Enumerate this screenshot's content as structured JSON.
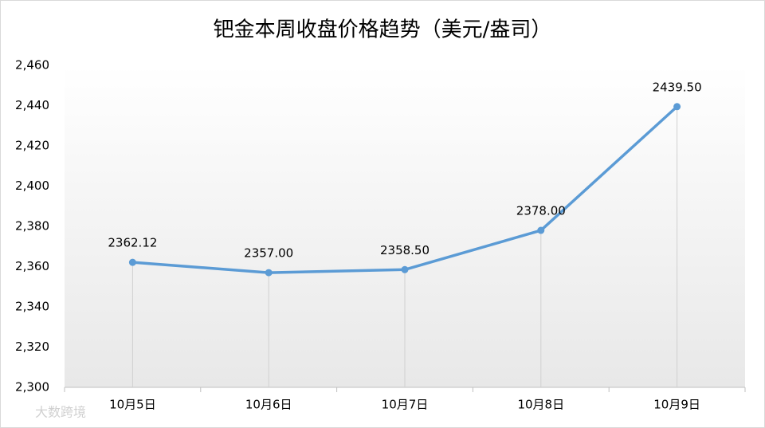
{
  "chart_data": {
    "type": "line",
    "title": "钯金本周收盘价格趋势（美元/盎司）",
    "categories": [
      "10月5日",
      "10月6日",
      "10月7日",
      "10月8日",
      "10月9日"
    ],
    "series": [
      {
        "name": "收盘价格",
        "color": "#5b9bd5",
        "values": [
          2362.12,
          2357,
          2358.5,
          2378,
          2439.5
        ],
        "value_labels": [
          "2362.12",
          "2357.00",
          "2358.50",
          "2378.00",
          "2439.50"
        ]
      }
    ],
    "ylim": [
      2300,
      2460
    ],
    "yticks": [
      {
        "value": 2300,
        "label": "2,300"
      },
      {
        "value": 2320,
        "label": "2,320"
      },
      {
        "value": 2340,
        "label": "2,340"
      },
      {
        "value": 2360,
        "label": "2,360"
      },
      {
        "value": 2380,
        "label": "2,380"
      },
      {
        "value": 2400,
        "label": "2,400"
      },
      {
        "value": 2420,
        "label": "2,420"
      },
      {
        "value": 2440,
        "label": "2,440"
      },
      {
        "value": 2460,
        "label": "2,460"
      }
    ],
    "drop_lines": true,
    "watermark": "大数跨境"
  }
}
